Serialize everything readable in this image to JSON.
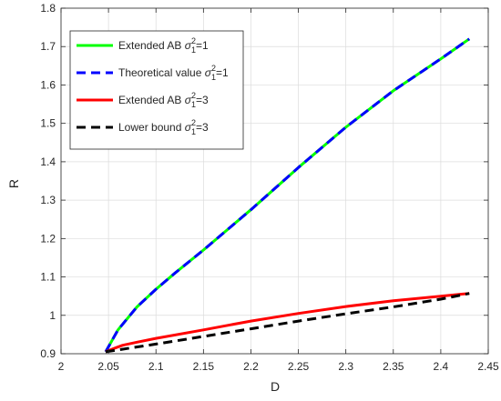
{
  "chart_data": {
    "type": "line",
    "xlabel": "D",
    "ylabel": "R",
    "xlim": [
      2,
      2.45
    ],
    "ylim": [
      0.9,
      1.8
    ],
    "grid": true,
    "legend_position": "top-left",
    "xticks": [
      "2",
      "2.05",
      "2.1",
      "2.15",
      "2.2",
      "2.25",
      "2.3",
      "2.35",
      "2.4",
      "2.45"
    ],
    "yticks": [
      "0.9",
      "1",
      "1.1",
      "1.2",
      "1.3",
      "1.4",
      "1.5",
      "1.6",
      "1.7",
      "1.8"
    ],
    "series": [
      {
        "legend_prefix": "Extended AB ",
        "legend_suffix": "=1",
        "color": "#00ff00",
        "dash": "solid",
        "x": [
          2.047,
          2.06,
          2.08,
          2.1,
          2.12,
          2.15,
          2.2,
          2.25,
          2.3,
          2.35,
          2.4,
          2.43
        ],
        "y": [
          0.905,
          0.962,
          1.022,
          1.068,
          1.11,
          1.17,
          1.275,
          1.385,
          1.49,
          1.585,
          1.668,
          1.72
        ]
      },
      {
        "legend_prefix": "Theoretical value ",
        "legend_suffix": "=1",
        "color": "#0000ff",
        "dash": "dashed",
        "x": [
          2.047,
          2.06,
          2.08,
          2.1,
          2.12,
          2.15,
          2.2,
          2.25,
          2.3,
          2.35,
          2.4,
          2.43
        ],
        "y": [
          0.905,
          0.962,
          1.022,
          1.068,
          1.11,
          1.17,
          1.275,
          1.385,
          1.49,
          1.585,
          1.668,
          1.72
        ]
      },
      {
        "legend_prefix": "Extended AB ",
        "legend_suffix": "=3",
        "color": "#ff0000",
        "dash": "solid",
        "x": [
          2.047,
          2.055,
          2.065,
          2.08,
          2.1,
          2.15,
          2.2,
          2.25,
          2.3,
          2.35,
          2.4,
          2.43
        ],
        "y": [
          0.905,
          0.913,
          0.922,
          0.93,
          0.94,
          0.962,
          0.985,
          1.005,
          1.023,
          1.038,
          1.05,
          1.057
        ]
      },
      {
        "legend_prefix": "Lower bound ",
        "legend_suffix": "=3",
        "color": "#000000",
        "dash": "dashed",
        "x": [
          2.047,
          2.1,
          2.15,
          2.2,
          2.25,
          2.3,
          2.35,
          2.4,
          2.43
        ],
        "y": [
          0.905,
          0.925,
          0.945,
          0.965,
          0.985,
          1.004,
          1.022,
          1.042,
          1.057
        ]
      }
    ]
  }
}
